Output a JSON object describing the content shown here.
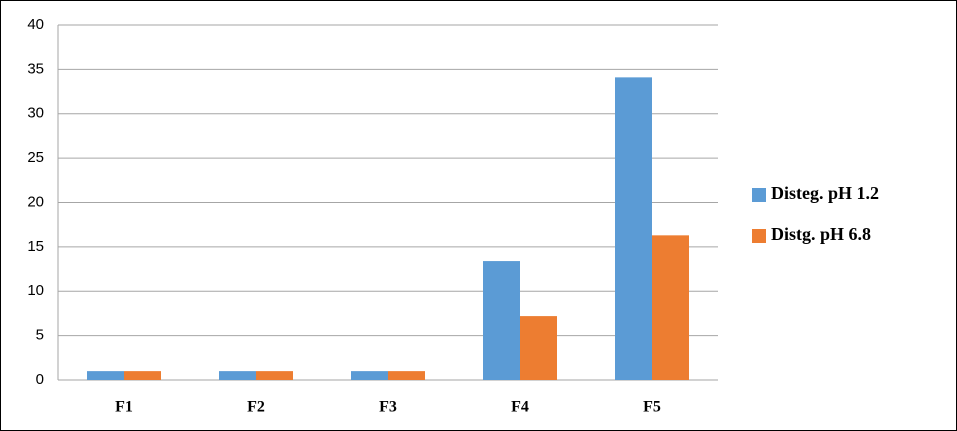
{
  "chart_data": {
    "type": "bar",
    "categories": [
      "F1",
      "F2",
      "F3",
      "F4",
      "F5"
    ],
    "series": [
      {
        "name": "Disteg. pH 1.2",
        "color": "#5b9bd5",
        "values": [
          1,
          1,
          1,
          13.4,
          34.1
        ]
      },
      {
        "name": "Distg. pH 6.8",
        "color": "#ed7d31",
        "values": [
          1,
          1,
          1,
          7.2,
          16.3
        ]
      }
    ],
    "ylim": [
      0,
      40
    ],
    "yticks": [
      0,
      5,
      10,
      15,
      20,
      25,
      30,
      35,
      40
    ],
    "grid": true,
    "legend": "right"
  }
}
